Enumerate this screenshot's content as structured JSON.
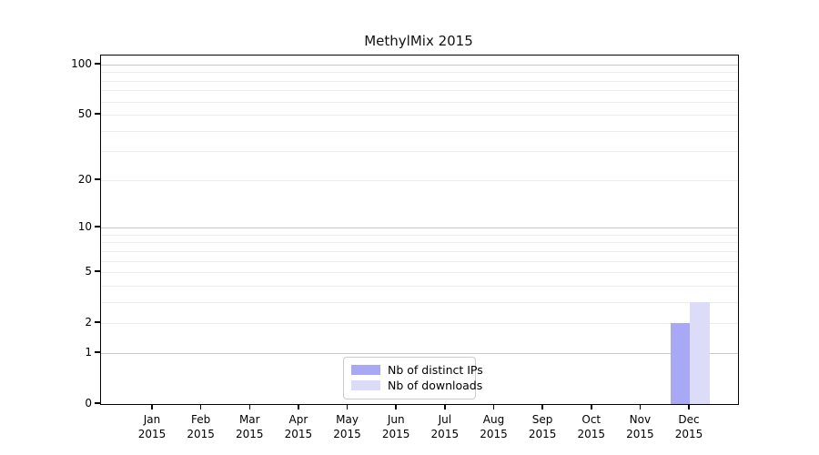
{
  "chart_data": {
    "type": "bar",
    "title": "MethylMix 2015",
    "categories": [
      "Jan",
      "Feb",
      "Mar",
      "Apr",
      "May",
      "Jun",
      "Jul",
      "Aug",
      "Sep",
      "Oct",
      "Nov",
      "Dec"
    ],
    "year": "2015",
    "series": [
      {
        "name": "Nb of distinct IPs",
        "color": "#a8a8f5",
        "values": [
          0,
          0,
          0,
          0,
          0,
          0,
          0,
          0,
          0,
          0,
          0,
          2
        ]
      },
      {
        "name": "Nb of downloads",
        "color": "#dcdcf9",
        "values": [
          0,
          0,
          0,
          0,
          0,
          0,
          0,
          0,
          0,
          0,
          0,
          3
        ]
      }
    ],
    "xlabel": "",
    "ylabel": "",
    "scale": "log1p",
    "ylim": [
      0,
      113
    ],
    "y_ticks": [
      0,
      1,
      2,
      5,
      10,
      20,
      50,
      100
    ],
    "major_gridlines": [
      1,
      10,
      100
    ],
    "minor_gridlines": [
      2,
      3,
      4,
      5,
      6,
      7,
      8,
      9,
      20,
      30,
      40,
      50,
      60,
      70,
      80,
      90
    ],
    "grid": true,
    "legend_position": "bottom-center"
  }
}
